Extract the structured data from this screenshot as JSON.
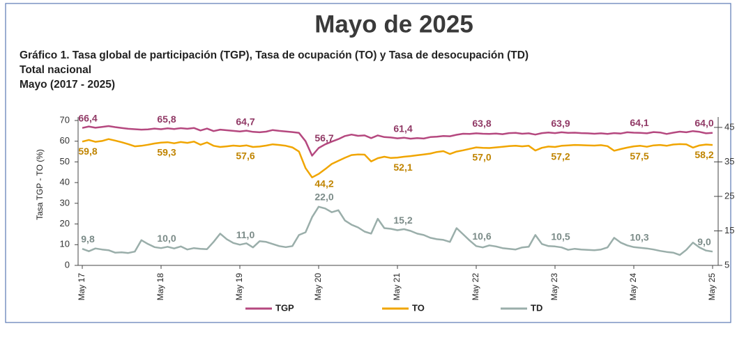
{
  "chart_data": {
    "type": "line",
    "title": "Mayo de 2025",
    "subtitle": [
      "Gráfico 1. Tasa global de participación (TGP), Tasa de ocupación (TO) y Tasa de desocupación (TD)",
      "Total nacional",
      "Mayo (2017 - 2025)"
    ],
    "ylabel": "Tasa TGP - TO (%)",
    "categories": [
      "May 17",
      null,
      null,
      null,
      null,
      null,
      null,
      null,
      null,
      null,
      null,
      null,
      "May 18",
      null,
      null,
      null,
      null,
      null,
      null,
      null,
      null,
      null,
      null,
      null,
      "May 19",
      null,
      null,
      null,
      null,
      null,
      null,
      null,
      null,
      null,
      null,
      null,
      "May 20",
      null,
      null,
      null,
      null,
      null,
      null,
      null,
      null,
      null,
      null,
      null,
      "May 21",
      null,
      null,
      null,
      null,
      null,
      null,
      null,
      null,
      null,
      null,
      null,
      "May 22",
      null,
      null,
      null,
      null,
      null,
      null,
      null,
      null,
      null,
      null,
      null,
      "May 23",
      null,
      null,
      null,
      null,
      null,
      null,
      null,
      null,
      null,
      null,
      null,
      "May 24",
      null,
      null,
      null,
      null,
      null,
      null,
      null,
      null,
      null,
      null,
      null,
      "May 25"
    ],
    "ylim": [
      0,
      70
    ],
    "yticks": [
      0,
      10,
      20,
      30,
      40,
      50,
      60,
      70
    ],
    "y2lim": [
      5,
      47
    ],
    "y2ticks": [
      5,
      15,
      25,
      35,
      45
    ],
    "legend": "bottom",
    "grid": false,
    "series": [
      {
        "name": "TGP",
        "color": "#b5487f",
        "values": [
          66.4,
          67.1,
          66.5,
          66.9,
          67.3,
          66.8,
          66.4,
          66.0,
          65.8,
          65.6,
          65.7,
          66.1,
          65.8,
          66.2,
          65.9,
          66.3,
          66.0,
          66.4,
          65.2,
          66.1,
          64.9,
          65.6,
          65.3,
          65.0,
          64.7,
          65.1,
          64.5,
          64.3,
          64.6,
          65.4,
          65.0,
          64.7,
          64.4,
          64.0,
          60.0,
          53.0,
          56.7,
          58.5,
          59.8,
          61.0,
          62.5,
          63.2,
          62.6,
          62.8,
          61.5,
          62.8,
          62.0,
          61.8,
          61.4,
          61.7,
          61.2,
          61.5,
          61.3,
          62.0,
          62.2,
          62.5,
          62.4,
          63.1,
          63.6,
          63.5,
          63.8,
          63.6,
          63.5,
          63.7,
          63.4,
          63.9,
          64.0,
          63.6,
          63.8,
          63.2,
          63.9,
          64.2,
          63.9,
          64.3,
          64.0,
          64.1,
          63.9,
          63.8,
          63.6,
          63.8,
          63.5,
          63.9,
          63.7,
          64.3,
          64.1,
          64.0,
          63.8,
          64.4,
          64.2,
          63.5,
          64.1,
          64.6,
          64.3,
          64.9,
          64.5,
          63.8,
          64.0
        ],
        "value_labels": [
          "66,4",
          null,
          null,
          null,
          null,
          null,
          null,
          null,
          null,
          null,
          null,
          null,
          "65,8",
          null,
          null,
          null,
          null,
          null,
          null,
          null,
          null,
          null,
          null,
          null,
          "64,7",
          null,
          null,
          null,
          null,
          null,
          null,
          null,
          null,
          null,
          null,
          null,
          "56,7",
          null,
          null,
          null,
          null,
          null,
          null,
          null,
          null,
          null,
          null,
          null,
          "61,4",
          null,
          null,
          null,
          null,
          null,
          null,
          null,
          null,
          null,
          null,
          null,
          "63,8",
          null,
          null,
          null,
          null,
          null,
          null,
          null,
          null,
          null,
          null,
          null,
          "63,9",
          null,
          null,
          null,
          null,
          null,
          null,
          null,
          null,
          null,
          null,
          null,
          "64,1",
          null,
          null,
          null,
          null,
          null,
          null,
          null,
          null,
          null,
          null,
          null,
          "64,0"
        ]
      },
      {
        "name": "TO",
        "color": "#f0a500",
        "values": [
          59.8,
          60.6,
          59.7,
          60.1,
          61.0,
          60.3,
          59.5,
          58.6,
          57.5,
          57.8,
          58.3,
          58.9,
          59.3,
          59.5,
          59.0,
          59.6,
          59.2,
          59.8,
          58.3,
          59.4,
          57.8,
          57.2,
          57.5,
          57.9,
          57.6,
          58.0,
          57.2,
          57.4,
          57.9,
          58.5,
          58.2,
          57.8,
          57.0,
          55.0,
          47.0,
          42.5,
          44.2,
          46.5,
          49.0,
          50.5,
          52.0,
          53.3,
          53.6,
          53.5,
          50.2,
          51.8,
          52.5,
          51.9,
          52.1,
          52.5,
          52.8,
          53.2,
          53.6,
          54.0,
          54.8,
          55.2,
          53.8,
          55.0,
          55.6,
          56.3,
          57.0,
          56.8,
          56.7,
          57.0,
          57.3,
          57.6,
          57.8,
          57.5,
          57.8,
          55.5,
          56.8,
          57.4,
          57.2,
          57.8,
          58.0,
          58.2,
          58.1,
          58.0,
          57.9,
          58.1,
          57.6,
          55.4,
          56.2,
          56.9,
          57.5,
          57.8,
          57.3,
          58.0,
          58.2,
          57.8,
          58.4,
          58.6,
          58.5,
          56.9,
          58.0,
          58.4,
          58.2
        ],
        "value_labels": [
          "59,8",
          null,
          null,
          null,
          null,
          null,
          null,
          null,
          null,
          null,
          null,
          null,
          "59,3",
          null,
          null,
          null,
          null,
          null,
          null,
          null,
          null,
          null,
          null,
          null,
          "57,6",
          null,
          null,
          null,
          null,
          null,
          null,
          null,
          null,
          null,
          null,
          null,
          "44,2",
          null,
          null,
          null,
          null,
          null,
          null,
          null,
          null,
          null,
          null,
          null,
          "52,1",
          null,
          null,
          null,
          null,
          null,
          null,
          null,
          null,
          null,
          null,
          null,
          "57,0",
          null,
          null,
          null,
          null,
          null,
          null,
          null,
          null,
          null,
          null,
          null,
          "57,2",
          null,
          null,
          null,
          null,
          null,
          null,
          null,
          null,
          null,
          null,
          null,
          "57,5",
          null,
          null,
          null,
          null,
          null,
          null,
          null,
          null,
          null,
          null,
          null,
          "58,2"
        ]
      },
      {
        "name": "TD",
        "color": "#9aaeaa",
        "axis": "y2",
        "values": [
          9.8,
          9.1,
          9.9,
          9.6,
          9.4,
          8.7,
          8.8,
          8.6,
          9.0,
          12.3,
          11.2,
          10.3,
          10.0,
          10.4,
          9.9,
          10.5,
          9.6,
          10.0,
          9.8,
          9.7,
          11.8,
          14.2,
          12.6,
          11.5,
          11.0,
          11.4,
          10.2,
          12.0,
          11.8,
          11.2,
          10.6,
          10.3,
          10.6,
          13.8,
          14.6,
          19.0,
          22.0,
          21.5,
          20.4,
          21.0,
          18.0,
          16.8,
          16.0,
          14.8,
          14.2,
          18.5,
          15.8,
          15.6,
          15.2,
          15.5,
          15.0,
          14.2,
          13.8,
          13.0,
          12.6,
          12.4,
          11.8,
          15.8,
          14.0,
          12.2,
          10.6,
          10.2,
          10.8,
          10.5,
          10.0,
          9.8,
          9.6,
          10.2,
          10.4,
          13.8,
          11.2,
          10.6,
          10.5,
          10.2,
          9.5,
          9.8,
          9.6,
          9.5,
          9.4,
          9.6,
          10.2,
          13.0,
          11.6,
          10.8,
          10.3,
          10.1,
          9.9,
          9.6,
          9.2,
          8.9,
          8.7,
          8.0,
          9.5,
          11.6,
          10.2,
          9.3,
          9.0
        ],
        "value_labels": [
          "9,8",
          null,
          null,
          null,
          null,
          null,
          null,
          null,
          null,
          null,
          null,
          null,
          "10,0",
          null,
          null,
          null,
          null,
          null,
          null,
          null,
          null,
          null,
          null,
          null,
          "11,0",
          null,
          null,
          null,
          null,
          null,
          null,
          null,
          null,
          null,
          null,
          null,
          "22,0",
          null,
          null,
          null,
          null,
          null,
          null,
          null,
          null,
          null,
          null,
          null,
          "15,2",
          null,
          null,
          null,
          null,
          null,
          null,
          null,
          null,
          null,
          null,
          null,
          "10,6",
          null,
          null,
          null,
          null,
          null,
          null,
          null,
          null,
          null,
          null,
          null,
          "10,5",
          null,
          null,
          null,
          null,
          null,
          null,
          null,
          null,
          null,
          null,
          null,
          "10,3",
          null,
          null,
          null,
          null,
          null,
          null,
          null,
          null,
          null,
          null,
          null,
          "9,0"
        ]
      }
    ]
  }
}
